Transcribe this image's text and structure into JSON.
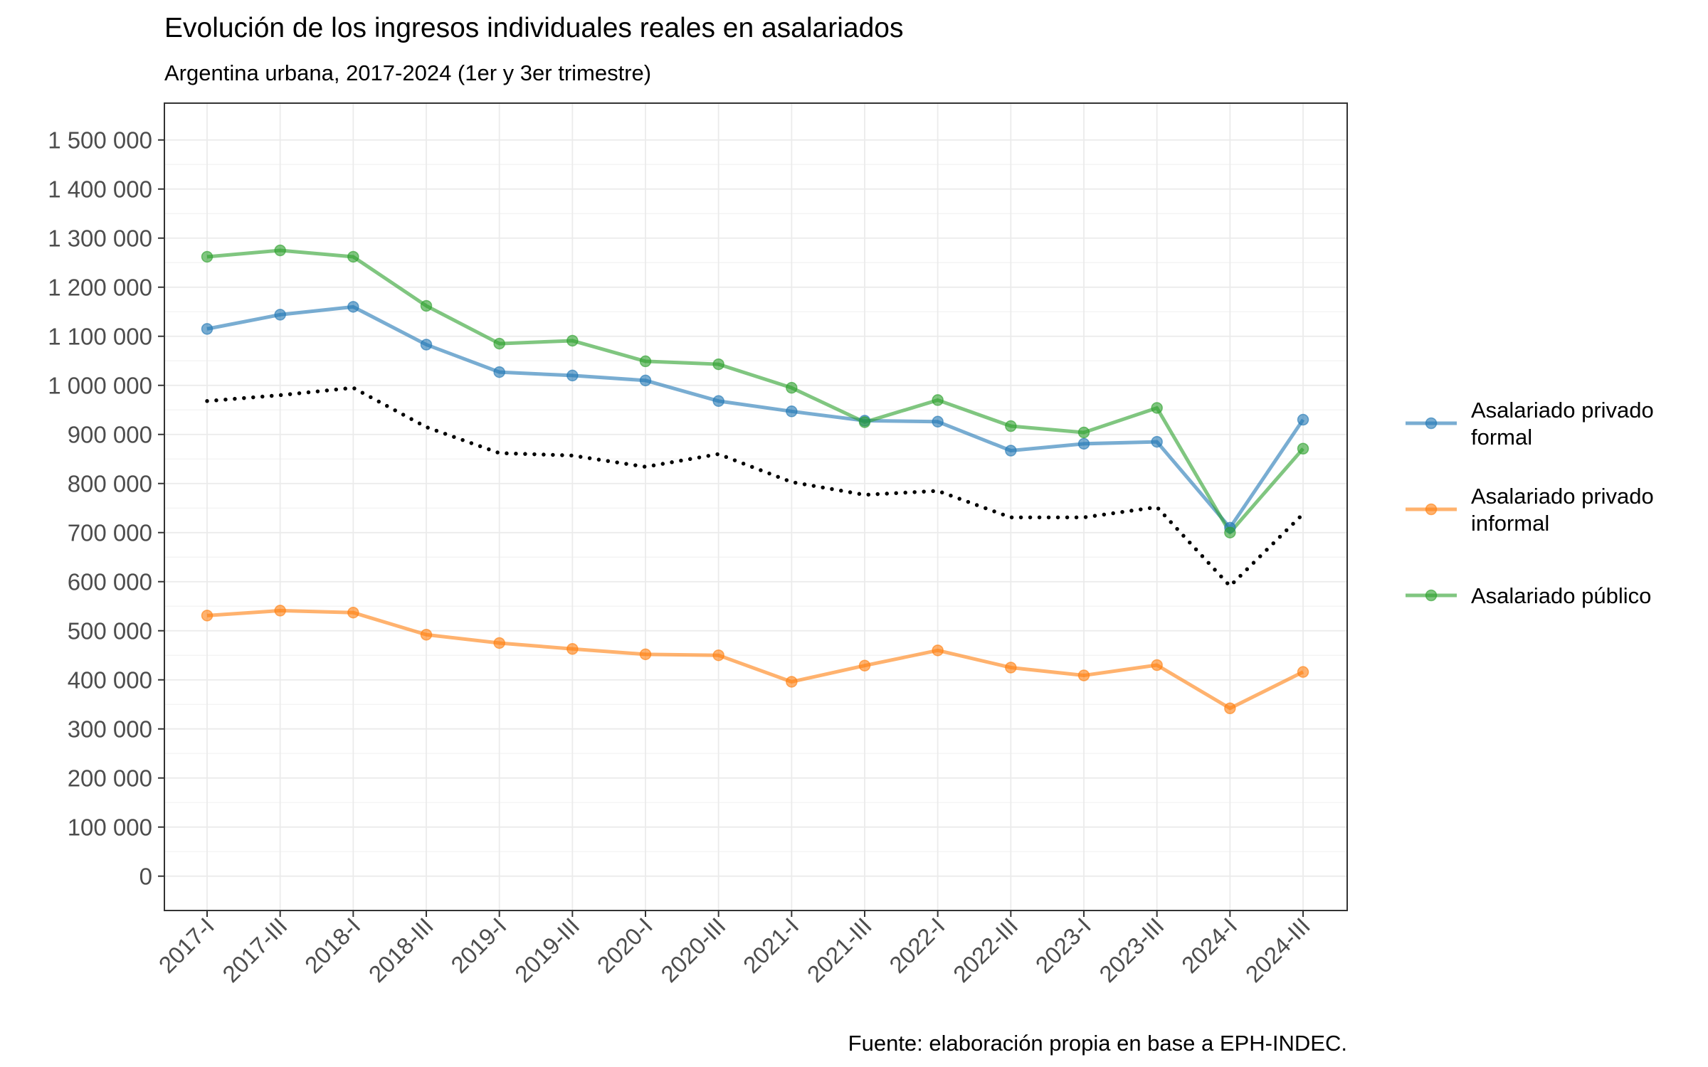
{
  "chart_data": {
    "type": "line",
    "title": "Evolución de los ingresos individuales reales en asalariados",
    "subtitle": "Argentina urbana, 2017-2024 (1er y 3er trimestre)",
    "caption": "Fuente: elaboración propia en base a EPH-INDEC.",
    "xlabel": "",
    "ylabel": "",
    "categories": [
      "2017-I",
      "2017-III",
      "2018-I",
      "2018-III",
      "2019-I",
      "2019-III",
      "2020-I",
      "2020-III",
      "2021-I",
      "2021-III",
      "2022-I",
      "2022-III",
      "2023-I",
      "2023-III",
      "2024-I",
      "2024-III"
    ],
    "y_ticks": [
      0,
      100000,
      200000,
      300000,
      400000,
      500000,
      600000,
      700000,
      800000,
      900000,
      1000000,
      1100000,
      1200000,
      1300000,
      1400000,
      1500000
    ],
    "y_tick_labels": [
      "0",
      "100 000",
      "200 000",
      "300 000",
      "400 000",
      "500 000",
      "600 000",
      "700 000",
      "800 000",
      "900 000",
      "1 000 000",
      "1 100 000",
      "1 200 000",
      "1 300 000",
      "1 400 000",
      "1 500 000"
    ],
    "ylim": [
      -70000,
      1575000
    ],
    "grid": true,
    "legend_position": "right",
    "series": [
      {
        "name": "Asalariado privado formal",
        "legend_lines": [
          "Asalariado privado",
          "formal"
        ],
        "color": "#1f77b4",
        "style": "solid-markers",
        "values": [
          1115000,
          1144000,
          1160000,
          1083000,
          1027000,
          1020000,
          1010000,
          968000,
          947000,
          928000,
          926000,
          867000,
          881000,
          885000,
          710000,
          930000
        ]
      },
      {
        "name": "Asalariado privado informal",
        "legend_lines": [
          "Asalariado privado",
          "informal"
        ],
        "color": "#ff7f0e",
        "style": "solid-markers",
        "values": [
          531000,
          541000,
          537000,
          492000,
          475000,
          463000,
          452000,
          450000,
          396000,
          429000,
          460000,
          425000,
          409000,
          430000,
          342000,
          416000
        ]
      },
      {
        "name": "Asalariado público",
        "legend_lines": [
          "Asalariado público"
        ],
        "color": "#2ca02c",
        "style": "solid-markers",
        "values": [
          1262000,
          1275000,
          1262000,
          1162000,
          1085000,
          1091000,
          1049000,
          1043000,
          995000,
          925000,
          970000,
          917000,
          904000,
          954000,
          700000,
          871000
        ]
      },
      {
        "name": "",
        "legend_lines": [],
        "color": "#000000",
        "style": "dotted",
        "values": [
          968000,
          980000,
          995000,
          915000,
          862000,
          857000,
          834000,
          860000,
          803000,
          777000,
          785000,
          731000,
          731000,
          752000,
          591000,
          738000
        ]
      }
    ]
  }
}
